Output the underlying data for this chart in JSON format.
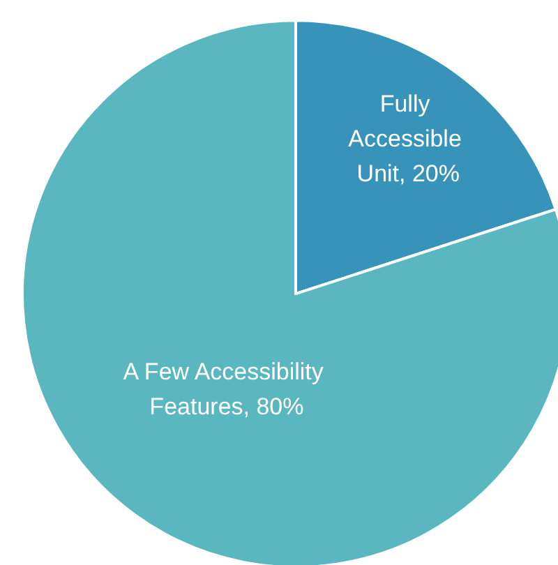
{
  "chart_data": {
    "type": "pie",
    "categories": [
      "Fully Accessible Unit",
      "A Few Accessibility Features"
    ],
    "values": [
      20,
      80
    ],
    "colors": [
      "#3793b9",
      "#5ab6bf"
    ],
    "value_labels": [
      "20%",
      "80%"
    ],
    "legend": false
  }
}
